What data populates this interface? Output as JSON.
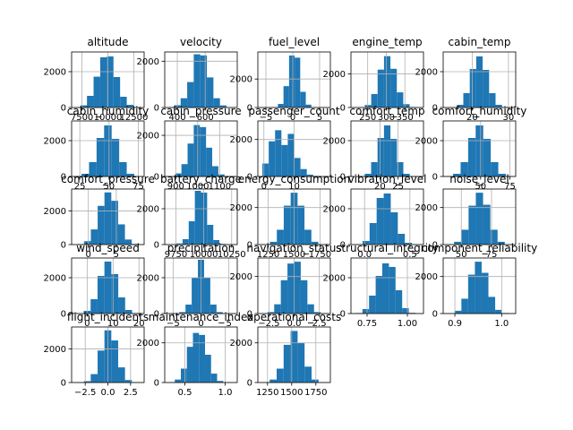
{
  "chart_data": {
    "type": "bar",
    "grid": true,
    "color": "#1f77b4",
    "panels": [
      {
        "title": "altitude",
        "xlim": [
          6500,
          13500
        ],
        "ylim": [
          0,
          3100
        ],
        "bins": [
          6700,
          13100
        ],
        "values": [
          20,
          120,
          650,
          1720,
          2800,
          2850,
          1700,
          600,
          150,
          20
        ],
        "xticks": [
          {
            "v": 7500,
            "l": "7500"
          },
          {
            "v": 10000,
            "l": "10000"
          },
          {
            "v": 12500,
            "l": "12500"
          }
        ],
        "yticks": [
          {
            "v": 0,
            "l": "0"
          },
          {
            "v": 2000,
            "l": "2000"
          }
        ]
      },
      {
        "title": "velocity",
        "xlim": [
          310,
          830
        ],
        "ylim": [
          0,
          2400
        ],
        "bins": [
          330,
          800
        ],
        "values": [
          20,
          100,
          400,
          1100,
          2300,
          2250,
          1300,
          400,
          90,
          10
        ],
        "xticks": [
          {
            "v": 400,
            "l": "400"
          },
          {
            "v": 600,
            "l": "600"
          }
        ],
        "yticks": [
          {
            "v": 0,
            "l": "0"
          },
          {
            "v": 2000,
            "l": "2000"
          }
        ]
      },
      {
        "title": "fuel_level",
        "xlim": [
          -6.5,
          7
        ],
        "ylim": [
          0,
          3900
        ],
        "bins": [
          -3.8,
          4.5
        ],
        "values": [
          30,
          250,
          1500,
          3650,
          3500,
          1100,
          200,
          20
        ],
        "xticks": [
          {
            "v": -5,
            "l": "−5"
          },
          {
            "v": 0,
            "l": "0"
          },
          {
            "v": 5,
            "l": "5"
          }
        ],
        "yticks": [
          {
            "v": 0,
            "l": "0"
          },
          {
            "v": 2000,
            "l": "2000"
          }
        ]
      },
      {
        "title": "engine_temp",
        "xlim": [
          205,
          400
        ],
        "ylim": [
          0,
          3300
        ],
        "bins": [
          225,
          380
        ],
        "values": [
          20,
          150,
          800,
          2250,
          3050,
          2300,
          900,
          200,
          30
        ],
        "xticks": [
          {
            "v": 250,
            "l": "250"
          },
          {
            "v": 300,
            "l": "300"
          },
          {
            "v": 350,
            "l": "350"
          }
        ],
        "yticks": [
          {
            "v": 0,
            "l": "0"
          },
          {
            "v": 2000,
            "l": "2000"
          }
        ]
      },
      {
        "title": "cabin_temp",
        "xlim": [
          12,
          32
        ],
        "ylim": [
          0,
          3100
        ],
        "bins": [
          14,
          30
        ],
        "values": [
          20,
          150,
          800,
          2150,
          2850,
          2100,
          800,
          150,
          20
        ],
        "xticks": [
          {
            "v": 20,
            "l": "20"
          },
          {
            "v": 30,
            "l": "30"
          }
        ],
        "yticks": [
          {
            "v": 0,
            "l": "0"
          },
          {
            "v": 2000,
            "l": "2000"
          }
        ]
      },
      {
        "title": "cabin_humidity",
        "xlim": [
          18,
          80
        ],
        "ylim": [
          0,
          3100
        ],
        "bins": [
          20,
          78
        ],
        "values": [
          20,
          150,
          800,
          2150,
          2850,
          2100,
          800,
          150,
          20
        ],
        "xticks": [
          {
            "v": 25,
            "l": "25"
          },
          {
            "v": 50,
            "l": "50"
          },
          {
            "v": 75,
            "l": "75"
          }
        ],
        "yticks": [
          {
            "v": 0,
            "l": "0"
          },
          {
            "v": 2000,
            "l": "2000"
          }
        ]
      },
      {
        "title": "cabin_pressure",
        "xlim": [
          850,
          1180
        ],
        "ylim": [
          0,
          2700
        ],
        "bins": [
          870,
          1150
        ],
        "values": [
          20,
          150,
          600,
          1600,
          2500,
          2400,
          1400,
          500,
          100,
          10
        ],
        "xticks": [
          {
            "v": 900,
            "l": "900"
          },
          {
            "v": 1000,
            "l": "1000"
          },
          {
            "v": 1100,
            "l": "1100"
          }
        ],
        "yticks": [
          {
            "v": 0,
            "l": "0"
          },
          {
            "v": 2000,
            "l": "2000"
          }
        ]
      },
      {
        "title": "passenger_count",
        "xlim": [
          -2,
          22
        ],
        "ylim": [
          0,
          3000
        ],
        "bins": [
          -0.5,
          20.5
        ],
        "values": [
          700,
          1900,
          2500,
          1700,
          2300,
          1000,
          400,
          100,
          30,
          5
        ],
        "xticks": [
          {
            "v": 0,
            "l": "0"
          },
          {
            "v": 10,
            "l": "10"
          }
        ],
        "yticks": [
          {
            "v": 0,
            "l": "0"
          },
          {
            "v": 2000,
            "l": "2000"
          }
        ]
      },
      {
        "title": "comfort_temp",
        "xlim": [
          12,
          32
        ],
        "ylim": [
          0,
          3100
        ],
        "bins": [
          14,
          30
        ],
        "values": [
          20,
          150,
          800,
          2150,
          2850,
          2100,
          800,
          150,
          20
        ],
        "xticks": [
          {
            "v": 20,
            "l": "20"
          },
          {
            "v": 25,
            "l": "25"
          }
        ],
        "yticks": [
          {
            "v": 0,
            "l": "0"
          },
          {
            "v": 2000,
            "l": "2000"
          }
        ]
      },
      {
        "title": "comfort_humidity",
        "xlim": [
          18,
          80
        ],
        "ylim": [
          0,
          3100
        ],
        "bins": [
          20,
          78
        ],
        "values": [
          20,
          150,
          800,
          2150,
          2850,
          2100,
          800,
          150,
          20
        ],
        "xticks": [
          {
            "v": 50,
            "l": "50"
          },
          {
            "v": 75,
            "l": "75"
          }
        ],
        "yticks": [
          {
            "v": 0,
            "l": "0"
          },
          {
            "v": 2000,
            "l": "2000"
          }
        ]
      },
      {
        "title": "comfort_pressure",
        "xlim": [
          -3,
          10
        ],
        "ylim": [
          0,
          3300
        ],
        "bins": [
          -2,
          9
        ],
        "values": [
          30,
          200,
          900,
          2300,
          3100,
          2600,
          1200,
          300,
          40
        ],
        "xticks": [
          {
            "v": 0,
            "l": "0"
          },
          {
            "v": 5,
            "l": "5"
          }
        ],
        "yticks": [
          {
            "v": 0,
            "l": "0"
          },
          {
            "v": 2000,
            "l": "2000"
          }
        ]
      },
      {
        "title": "battery_charge",
        "xlim": [
          9650,
          10300
        ],
        "ylim": [
          0,
          3100
        ],
        "bins": [
          9700,
          10250
        ],
        "values": [
          10,
          60,
          300,
          1300,
          3000,
          2900,
          1100,
          250,
          40,
          5
        ],
        "xticks": [
          {
            "v": 9750,
            "l": "9750"
          },
          {
            "v": 10000,
            "l": "10000"
          },
          {
            "v": 10250,
            "l": "10250"
          }
        ],
        "yticks": [
          {
            "v": 0,
            "l": "0"
          },
          {
            "v": 2000,
            "l": "2000"
          }
        ]
      },
      {
        "title": "energy_consumption",
        "xlim": [
          1150,
          1850
        ],
        "ylim": [
          0,
          3000
        ],
        "bins": [
          1200,
          1800
        ],
        "values": [
          20,
          150,
          800,
          2100,
          2800,
          2100,
          800,
          150,
          20
        ],
        "xticks": [
          {
            "v": 1250,
            "l": "1250"
          },
          {
            "v": 1500,
            "l": "1500"
          },
          {
            "v": 1750,
            "l": "1750"
          }
        ],
        "yticks": [
          {
            "v": 0,
            "l": "0"
          },
          {
            "v": 2000,
            "l": "2000"
          }
        ]
      },
      {
        "title": "vibration_level",
        "xlim": [
          -0.15,
          0.65
        ],
        "ylim": [
          0,
          3100
        ],
        "bins": [
          -0.1,
          0.6
        ],
        "values": [
          20,
          200,
          1200,
          2600,
          2850,
          1800,
          600,
          100,
          15
        ],
        "xticks": [
          {
            "v": 0,
            "l": "0.0"
          },
          {
            "v": 0.5,
            "l": "0.5"
          }
        ],
        "yticks": [
          {
            "v": 0,
            "l": "0"
          },
          {
            "v": 2000,
            "l": "2000"
          }
        ]
      },
      {
        "title": "noise_level",
        "xlim": [
          35,
          95
        ],
        "ylim": [
          0,
          3000
        ],
        "bins": [
          38,
          92
        ],
        "values": [
          20,
          150,
          800,
          2100,
          2800,
          2150,
          800,
          150,
          20
        ],
        "xticks": [
          {
            "v": 50,
            "l": "50"
          },
          {
            "v": 75,
            "l": "75"
          }
        ],
        "yticks": [
          {
            "v": 0,
            "l": "0"
          },
          {
            "v": 2000,
            "l": "2000"
          }
        ]
      },
      {
        "title": "wind_speed",
        "xlim": [
          -6,
          22
        ],
        "ylim": [
          0,
          3100
        ],
        "bins": [
          -4,
          20
        ],
        "values": [
          20,
          150,
          800,
          2100,
          2900,
          2200,
          900,
          200,
          30
        ],
        "xticks": [
          {
            "v": 0,
            "l": "0"
          },
          {
            "v": 10,
            "l": "10"
          },
          {
            "v": 20,
            "l": "20"
          }
        ],
        "yticks": [
          {
            "v": 0,
            "l": "0"
          },
          {
            "v": 2000,
            "l": "2000"
          }
        ]
      },
      {
        "title": "precipitation",
        "xlim": [
          -6.5,
          6.5
        ],
        "ylim": [
          0,
          3100
        ],
        "bins": [
          -5,
          5
        ],
        "values": [
          10,
          80,
          500,
          2000,
          3000,
          2000,
          500,
          80,
          10
        ],
        "xticks": [
          {
            "v": -5,
            "l": "−5"
          },
          {
            "v": 0,
            "l": "0"
          },
          {
            "v": 5,
            "l": "5"
          }
        ],
        "yticks": [
          {
            "v": 0,
            "l": "0"
          },
          {
            "v": 2000,
            "l": "2000"
          }
        ]
      },
      {
        "title": "navigation_status",
        "xlim": [
          -3.6,
          3.6
        ],
        "ylim": [
          0,
          3000
        ],
        "bins": [
          -3.3,
          3.3
        ],
        "values": [
          10,
          80,
          500,
          1800,
          2700,
          2800,
          1800,
          500,
          80,
          10
        ],
        "xticks": [
          {
            "v": -2.5,
            "l": "−2.5"
          },
          {
            "v": 0,
            "l": "0.0"
          },
          {
            "v": 2.5,
            "l": "2.5"
          }
        ],
        "yticks": [
          {
            "v": 0,
            "l": "0"
          },
          {
            "v": 2000,
            "l": "2000"
          }
        ]
      },
      {
        "title": "structural_integrity",
        "xlim": [
          0.65,
          1.1
        ],
        "ylim": [
          0,
          3100
        ],
        "bins": [
          0.68,
          1.05
        ],
        "values": [
          30,
          250,
          1000,
          2100,
          2800,
          2600,
          1300,
          300,
          40
        ],
        "xticks": [
          {
            "v": 0.75,
            "l": "0.75"
          },
          {
            "v": 1.0,
            "l": "1.00"
          }
        ],
        "yticks": [
          {
            "v": 0,
            "l": "0"
          },
          {
            "v": 2000,
            "l": "2000"
          }
        ]
      },
      {
        "title": "component_reliability",
        "xlim": [
          0.875,
          1.03
        ],
        "ylim": [
          0,
          3000
        ],
        "bins": [
          0.885,
          1.015
        ],
        "values": [
          20,
          150,
          800,
          2100,
          2800,
          2200,
          900,
          200,
          30
        ],
        "xticks": [
          {
            "v": 0.9,
            "l": "0.9"
          },
          {
            "v": 1.0,
            "l": "1.0"
          }
        ],
        "yticks": [
          {
            "v": 0,
            "l": "0"
          },
          {
            "v": 2000,
            "l": "2000"
          }
        ]
      },
      {
        "title": "flight_incidents",
        "xlim": [
          -4,
          4
        ],
        "ylim": [
          0,
          3300
        ],
        "bins": [
          -3.4,
          3.4
        ],
        "values": [
          10,
          80,
          500,
          1900,
          3100,
          2500,
          900,
          150,
          20
        ],
        "xticks": [
          {
            "v": -2.5,
            "l": "−2.5"
          },
          {
            "v": 0,
            "l": "0.0"
          },
          {
            "v": 2.5,
            "l": "2.5"
          }
        ],
        "yticks": [
          {
            "v": 0,
            "l": "0"
          },
          {
            "v": 2000,
            "l": "2000"
          }
        ]
      },
      {
        "title": "maintenance_index",
        "xlim": [
          0.25,
          1.15
        ],
        "ylim": [
          0,
          2800
        ],
        "bins": [
          0.3,
          1.05
        ],
        "values": [
          20,
          150,
          700,
          1800,
          2500,
          2400,
          1400,
          450,
          80,
          10
        ],
        "xticks": [
          {
            "v": 0.5,
            "l": "0.5"
          },
          {
            "v": 1.0,
            "l": "1.0"
          }
        ],
        "yticks": [
          {
            "v": 0,
            "l": "0"
          },
          {
            "v": 2000,
            "l": "2000"
          }
        ]
      },
      {
        "title": "operational_costs",
        "xlim": [
          1150,
          1900
        ],
        "ylim": [
          0,
          2800
        ],
        "bins": [
          1200,
          1850
        ],
        "values": [
          20,
          150,
          700,
          1900,
          2600,
          2000,
          800,
          150,
          20
        ],
        "xticks": [
          {
            "v": 1250,
            "l": "1250"
          },
          {
            "v": 1500,
            "l": "1500"
          },
          {
            "v": 1750,
            "l": "1750"
          }
        ],
        "yticks": [
          {
            "v": 0,
            "l": "0"
          },
          {
            "v": 2000,
            "l": "2000"
          }
        ]
      }
    ]
  }
}
